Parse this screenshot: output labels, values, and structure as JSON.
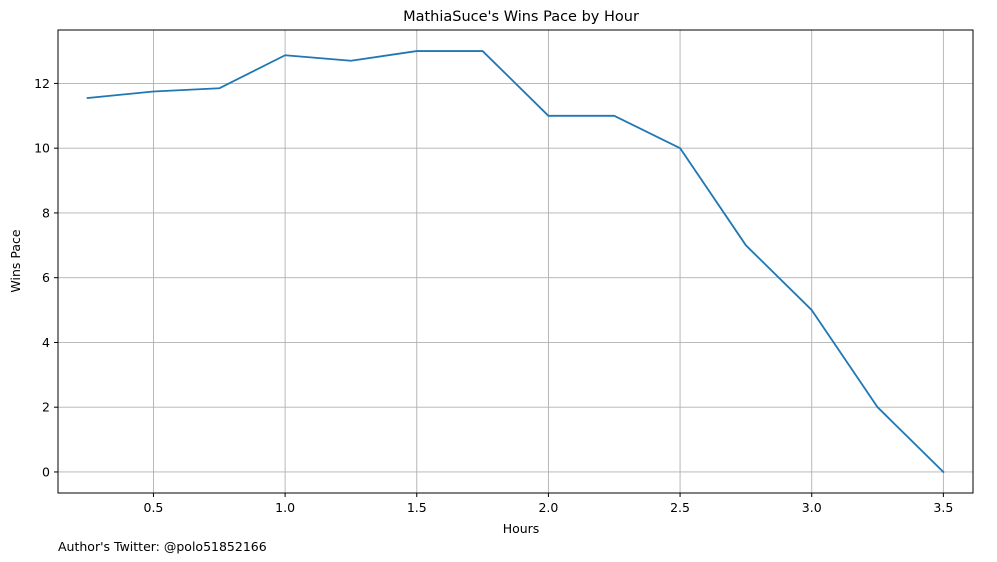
{
  "chart_data": {
    "type": "line",
    "title": "MathiaSuce's Wins Pace by Hour",
    "xlabel": "Hours",
    "ylabel": "Wins Pace",
    "xlim": [
      0.1375,
      3.6125
    ],
    "ylim": [
      -0.65,
      13.65
    ],
    "xticks": [
      0.5,
      1.0,
      1.5,
      2.0,
      2.5,
      3.0,
      3.5
    ],
    "xtick_labels": [
      "0.5",
      "1.0",
      "1.5",
      "2.0",
      "2.5",
      "3.0",
      "3.5"
    ],
    "yticks": [
      0,
      2,
      4,
      6,
      8,
      10,
      12
    ],
    "ytick_labels": [
      "0",
      "2",
      "4",
      "6",
      "8",
      "10",
      "12"
    ],
    "grid": true,
    "series": [
      {
        "color": "#1f77b4",
        "x": [
          0.25,
          0.5,
          0.75,
          1.0,
          1.25,
          1.5,
          1.75,
          2.0,
          2.25,
          2.5,
          2.75,
          3.0,
          3.25,
          3.5
        ],
        "y": [
          11.55,
          11.75,
          11.85,
          12.87,
          12.7,
          13.0,
          13.0,
          11.0,
          11.0,
          10.0,
          7.0,
          5.0,
          2.0,
          0.0
        ]
      }
    ]
  },
  "footnote": "Author's Twitter: @polo51852166"
}
